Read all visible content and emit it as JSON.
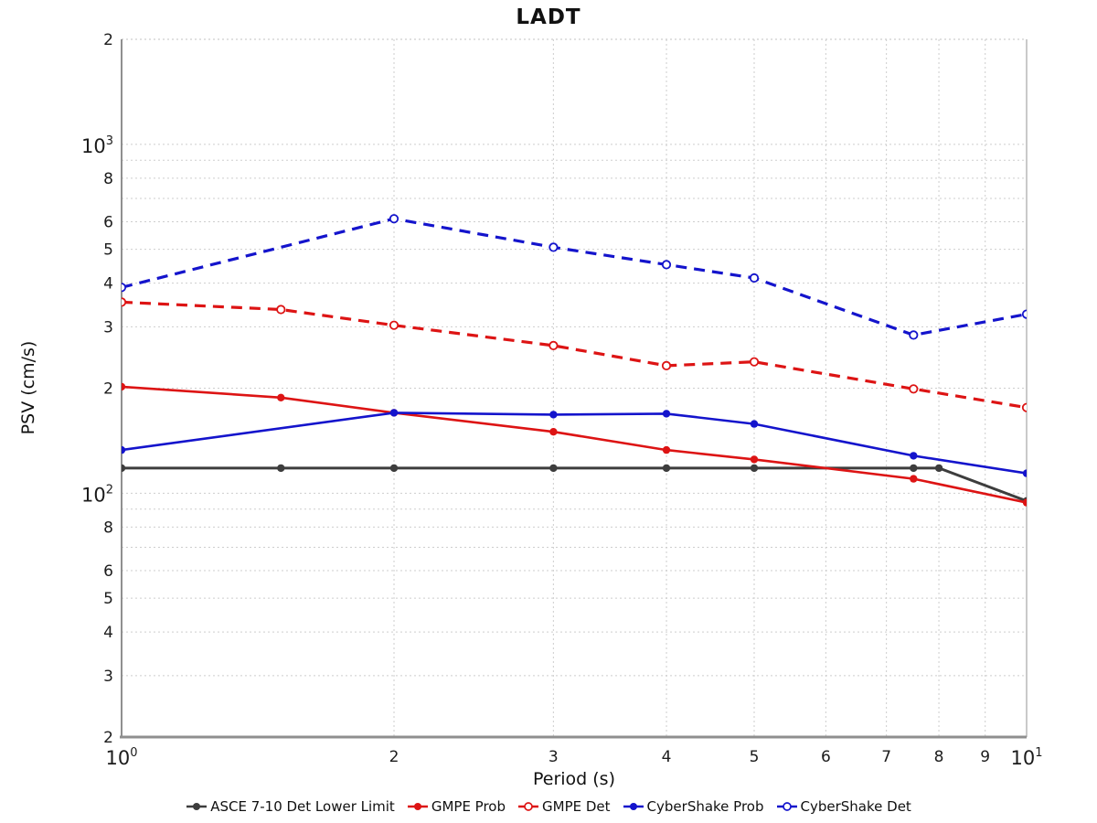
{
  "chart_data": {
    "type": "line",
    "title": "LADT",
    "xlabel": "Period (s)",
    "ylabel": "PSV (cm/s)",
    "x_scale": "log",
    "y_scale": "log",
    "xlim": [
      1,
      10
    ],
    "ylim": [
      20,
      2000
    ],
    "grid": true,
    "legend_position": "bottom",
    "x_ticks": [
      {
        "v": 1,
        "label": "10^0"
      },
      {
        "v": 2,
        "label": "2"
      },
      {
        "v": 3,
        "label": "3"
      },
      {
        "v": 4,
        "label": "4"
      },
      {
        "v": 5,
        "label": "5"
      },
      {
        "v": 6,
        "label": "6"
      },
      {
        "v": 7,
        "label": "7"
      },
      {
        "v": 8,
        "label": "8"
      },
      {
        "v": 9,
        "label": "9"
      },
      {
        "v": 10,
        "label": "10^1"
      }
    ],
    "y_ticks": [
      {
        "v": 2000,
        "label": "2"
      },
      {
        "v": 1000,
        "label": "10^3"
      },
      {
        "v": 800,
        "label": "8"
      },
      {
        "v": 600,
        "label": "6"
      },
      {
        "v": 500,
        "label": "5"
      },
      {
        "v": 400,
        "label": "4"
      },
      {
        "v": 300,
        "label": "3"
      },
      {
        "v": 200,
        "label": "2"
      },
      {
        "v": 100,
        "label": "10^2"
      },
      {
        "v": 80,
        "label": "8"
      },
      {
        "v": 60,
        "label": "6"
      },
      {
        "v": 50,
        "label": "5"
      },
      {
        "v": 40,
        "label": "4"
      },
      {
        "v": 30,
        "label": "3"
      },
      {
        "v": 20,
        "label": "2"
      }
    ],
    "x_gridlines": [
      2,
      3,
      4,
      5,
      6,
      7,
      8,
      9
    ],
    "y_gridlines": [
      1000,
      900,
      800,
      700,
      600,
      500,
      400,
      300,
      200,
      100,
      90,
      80,
      70,
      60,
      50,
      40,
      30
    ],
    "series": [
      {
        "name": "ASCE 7-10 Det Lower Limit",
        "color": "#3d3d3d",
        "line_style": "solid",
        "marker": "filled",
        "points": [
          [
            1,
            118
          ],
          [
            1.5,
            118
          ],
          [
            2,
            118
          ],
          [
            3,
            118
          ],
          [
            4,
            118
          ],
          [
            5,
            118
          ],
          [
            7.5,
            118
          ],
          [
            8,
            118
          ],
          [
            10,
            95
          ]
        ]
      },
      {
        "name": "GMPE Prob",
        "color": "#dd1414",
        "line_style": "solid",
        "marker": "filled",
        "points": [
          [
            1,
            202
          ],
          [
            1.5,
            188
          ],
          [
            2,
            170
          ],
          [
            3,
            150
          ],
          [
            4,
            133
          ],
          [
            5,
            125
          ],
          [
            7.5,
            110
          ],
          [
            10,
            94
          ]
        ]
      },
      {
        "name": "GMPE Det",
        "color": "#dd1414",
        "line_style": "dashed",
        "marker": "open",
        "points": [
          [
            1,
            353
          ],
          [
            1.5,
            336
          ],
          [
            2,
            303
          ],
          [
            3,
            265
          ],
          [
            4,
            232
          ],
          [
            5,
            238
          ],
          [
            7.5,
            199
          ],
          [
            10,
            176
          ]
        ]
      },
      {
        "name": "CyberShake Prob",
        "color": "#1414cc",
        "line_style": "solid",
        "marker": "filled",
        "points": [
          [
            1,
            133
          ],
          [
            2,
            170
          ],
          [
            3,
            168
          ],
          [
            4,
            169
          ],
          [
            5,
            158
          ],
          [
            7.5,
            128
          ],
          [
            10,
            114
          ]
        ]
      },
      {
        "name": "CyberShake Det",
        "color": "#1414cc",
        "line_style": "dashed",
        "marker": "open",
        "points": [
          [
            1,
            389
          ],
          [
            2,
            612
          ],
          [
            3,
            507
          ],
          [
            4,
            452
          ],
          [
            5,
            414
          ],
          [
            7.5,
            284
          ],
          [
            10,
            326
          ]
        ]
      }
    ],
    "colors": {
      "grid": "#cdcdcd",
      "axis": "#8f8f8f",
      "border_right": "#b8b8b8",
      "tick_text": "#1c1c1c"
    }
  }
}
